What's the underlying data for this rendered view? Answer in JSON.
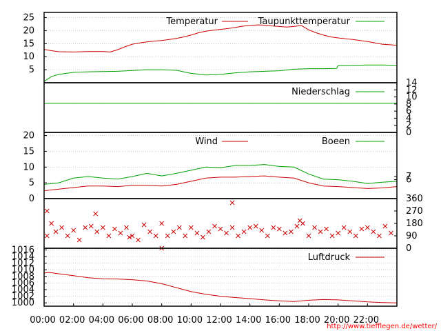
{
  "credit": "http://www.tiefflegen.de/wetter/",
  "x_axis": {
    "ticks": [
      "00:00",
      "02:00",
      "04:00",
      "06:00",
      "08:00",
      "10:00",
      "12:00",
      "14:00",
      "16:00",
      "18:00",
      "20:00",
      "22:00"
    ],
    "range_hours": [
      0,
      24
    ]
  },
  "colors": {
    "red": "#cc0000",
    "green": "#00a000"
  },
  "chart_data": [
    {
      "type": "line",
      "id": "temperature",
      "title": "",
      "ylim": [
        0,
        27
      ],
      "yticks_left": [
        5,
        10,
        15,
        20,
        25
      ],
      "grid": true,
      "legend": "top-right",
      "series": [
        {
          "name": "Temperatur",
          "color": "#cc0000",
          "x": [
            0,
            0.5,
            1,
            2,
            3,
            4,
            4.5,
            5,
            5.5,
            6,
            6.5,
            7,
            7.5,
            8,
            8.5,
            9,
            9.5,
            10,
            10.5,
            11,
            11.5,
            12,
            12.5,
            13,
            13.5,
            14,
            14.5,
            15,
            15.5,
            16,
            16.5,
            17,
            17.5,
            18,
            18.5,
            19,
            19.5,
            20,
            21,
            22,
            23,
            24
          ],
          "y": [
            12.8,
            12.3,
            11.9,
            11.8,
            12,
            12,
            11.8,
            12.7,
            13.8,
            14.8,
            15.3,
            15.7,
            16,
            16.2,
            16.6,
            17,
            17.6,
            18.3,
            19.2,
            19.8,
            20.2,
            20.5,
            20.8,
            21.2,
            21.7,
            22,
            22.2,
            22.1,
            21.8,
            21.6,
            21.4,
            21.6,
            22,
            20.3,
            19.2,
            18.3,
            17.6,
            17.2,
            16.6,
            15.8,
            14.8,
            14.4
          ]
        },
        {
          "name": "Taupunkttemperatur",
          "color": "#00a000",
          "x": [
            0,
            0.5,
            1,
            2,
            3,
            4,
            5,
            6,
            7,
            8,
            9,
            10,
            11,
            12,
            13,
            14,
            15,
            16,
            17,
            18,
            19,
            19.9,
            20,
            21,
            22,
            23,
            24
          ],
          "y": [
            0.5,
            2.4,
            3.2,
            4,
            4.2,
            4.3,
            4.4,
            4.7,
            5,
            5,
            4.8,
            3.6,
            3,
            3.2,
            3.8,
            4.2,
            4.4,
            4.6,
            5.2,
            5.4,
            5.4,
            5.5,
            6.5,
            6.7,
            6.8,
            6.8,
            6.7
          ]
        }
      ]
    },
    {
      "type": "line",
      "id": "precipitation",
      "ylim": [
        0,
        14
      ],
      "yticks_right": [
        0,
        2,
        4,
        6,
        8,
        10,
        12,
        14
      ],
      "grid": false,
      "legend": "top-right",
      "series": [
        {
          "name": "Niederschlag",
          "color": "#00a000",
          "x": [
            0,
            24
          ],
          "y": [
            8.2,
            8.2
          ]
        }
      ]
    },
    {
      "type": "line",
      "id": "wind",
      "ylim": [
        0,
        21
      ],
      "yticks_left": [
        0,
        5,
        10,
        15,
        20
      ],
      "yticks_right": [
        6,
        7
      ],
      "grid": true,
      "legend": "top-right",
      "series": [
        {
          "name": "Wind",
          "color": "#cc0000",
          "x": [
            0,
            1,
            2,
            3,
            4,
            5,
            6,
            7,
            8,
            9,
            10,
            11,
            12,
            13,
            14,
            15,
            16,
            17,
            18,
            19,
            20,
            21,
            22,
            23,
            24
          ],
          "y": [
            2.5,
            3,
            3.5,
            4,
            4,
            3.8,
            4.2,
            4.2,
            4,
            4.5,
            5.5,
            6.5,
            6.8,
            6.8,
            7,
            7.2,
            6.8,
            6.5,
            5,
            4,
            3.8,
            3.5,
            3.2,
            3.4,
            3.8
          ]
        },
        {
          "name": "Boeen",
          "color": "#00a000",
          "x": [
            0,
            1,
            2,
            3,
            4,
            5,
            6,
            7,
            8,
            9,
            10,
            11,
            12,
            13,
            14,
            15,
            16,
            17,
            18,
            19,
            20,
            21,
            22,
            23,
            24
          ],
          "y": [
            4.5,
            5,
            6.5,
            7,
            6.5,
            6.2,
            7,
            8,
            7.2,
            8,
            9,
            10,
            9.8,
            10.5,
            10.5,
            10.8,
            10.2,
            10,
            7.8,
            6.2,
            6,
            5.5,
            4.8,
            5.2,
            5.5
          ]
        }
      ]
    },
    {
      "type": "scatter",
      "id": "wind-direction",
      "ylim": [
        0,
        360
      ],
      "yticks_right": [
        0,
        90,
        180,
        270,
        360
      ],
      "series": [
        {
          "name": "",
          "color": "#cc0000",
          "x": [
            0.2,
            0.5,
            0.8,
            1.2,
            1.6,
            2,
            2.4,
            2.8,
            3.2,
            3.6,
            4,
            4.4,
            4.8,
            5.2,
            5.6,
            6,
            6.4,
            6.8,
            7.2,
            7.6,
            8,
            8.4,
            8.8,
            9.2,
            9.6,
            10,
            10.4,
            10.8,
            11.2,
            11.6,
            12,
            12.4,
            12.8,
            13.2,
            13.6,
            14,
            14.4,
            14.8,
            15.2,
            15.6,
            16,
            16.4,
            16.8,
            17.2,
            17.6,
            18,
            18.4,
            18.8,
            19.2,
            19.6,
            20,
            20.4,
            20.8,
            21.2,
            21.6,
            22,
            22.4,
            22.8,
            23.2,
            23.6
          ],
          "y": [
            90,
            180,
            120,
            150,
            90,
            130,
            60,
            150,
            160,
            120,
            150,
            90,
            140,
            110,
            150,
            90,
            60,
            170,
            120,
            90,
            180,
            90,
            120,
            150,
            90,
            150,
            110,
            80,
            120,
            160,
            140,
            110,
            150,
            90,
            120,
            150,
            160,
            130,
            90,
            150,
            140,
            110,
            120,
            160,
            180,
            90,
            150,
            120,
            140,
            90,
            110,
            150,
            120,
            90,
            140,
            150,
            120,
            90,
            160,
            110
          ]
        },
        {
          "name": "",
          "color": "#cc0000",
          "x": [
            0.2,
            3.5,
            5.8,
            8,
            12.8,
            17.4
          ],
          "y": [
            270,
            250,
            80,
            0,
            330,
            200
          ]
        }
      ]
    },
    {
      "type": "line",
      "id": "pressure",
      "ylim": [
        999,
        1016.5
      ],
      "yticks_left": [
        1000,
        1002,
        1004,
        1006,
        1008,
        1010,
        1012,
        1014,
        1016
      ],
      "grid": true,
      "legend": "top-right",
      "series": [
        {
          "name": "Luftdruck",
          "color": "#cc0000",
          "x": [
            0,
            0.3,
            1,
            2,
            3,
            4,
            5,
            6,
            7,
            8,
            9,
            10,
            11,
            12,
            13,
            14,
            15,
            16,
            17,
            18,
            19,
            20,
            21,
            22,
            23,
            24
          ],
          "y": [
            1009,
            1009.2,
            1008.8,
            1008.2,
            1007.6,
            1007.3,
            1007.2,
            1007,
            1006.6,
            1005.8,
            1004.6,
            1003.4,
            1002.6,
            1002,
            1001.6,
            1001.3,
            1000.9,
            1000.6,
            1000.4,
            1000.8,
            1001,
            1000.9,
            1000.6,
            1000.3,
            1000.1,
            1000
          ]
        }
      ]
    }
  ]
}
